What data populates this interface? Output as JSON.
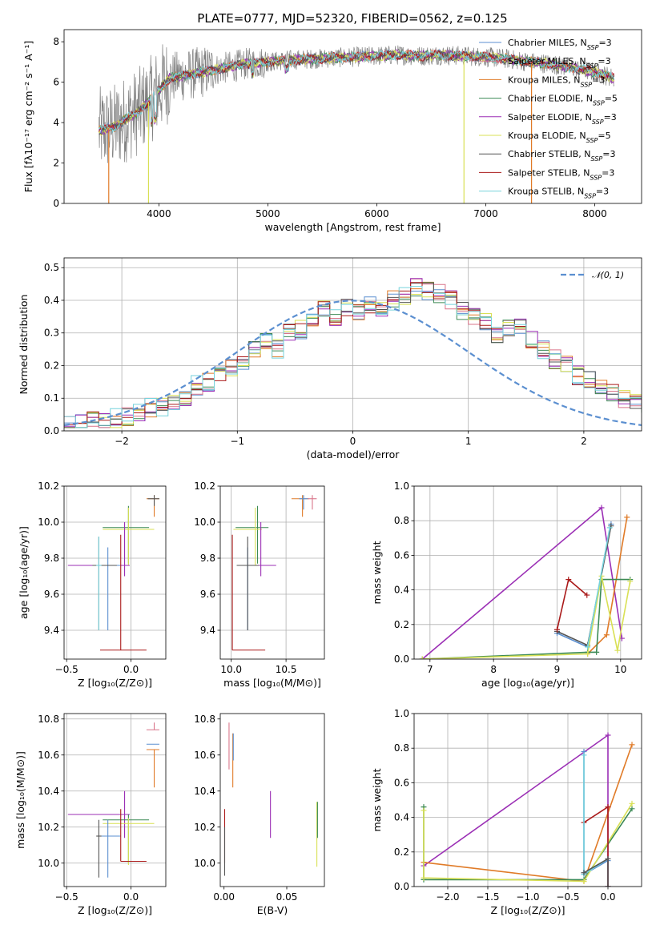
{
  "chart_data": [
    {
      "id": "spectrum",
      "type": "line",
      "title": "PLATE=0777, MJD=52320, FIBERID=0562, z=0.125",
      "xlabel": "wavelength [Angstrom, rest frame]",
      "ylabel": "Flux [fλ10⁻¹⁷ erg cm⁻² s⁻¹ A⁻¹]",
      "xlim": [
        3130,
        8430
      ],
      "ylim": [
        0,
        8.6
      ],
      "xticks": [
        4000,
        5000,
        6000,
        7000,
        8000
      ],
      "yticks": [
        0,
        2,
        4,
        6,
        8
      ],
      "legend_position": "right",
      "data_series": {
        "name": "",
        "color": "#808080"
      },
      "series": [
        {
          "name": "Chabrier MILES, N_SSP=3",
          "color": "#5b8fd0"
        },
        {
          "name": "Salpeter MILES, N_SSP=3",
          "color": "#d9748a"
        },
        {
          "name": "Kroupa MILES, N_SSP=3",
          "color": "#e07b28"
        },
        {
          "name": "Chabrier ELODIE, N_SSP=5",
          "color": "#3c8a55"
        },
        {
          "name": "Salpeter ELODIE, N_SSP=3",
          "color": "#9b2fb5"
        },
        {
          "name": "Kroupa ELODIE, N_SSP=5",
          "color": "#d9e055"
        },
        {
          "name": "Chabrier STELIB, N_SSP=3",
          "color": "#555555"
        },
        {
          "name": "Salpeter STELIB, N_SSP=3",
          "color": "#aa1a1a"
        },
        {
          "name": "Kroupa STELIB, N_SSP=3",
          "color": "#76d2dc"
        }
      ],
      "continuum": {
        "x": [
          3450,
          3600,
          3700,
          3800,
          3900,
          4000,
          4100,
          4200,
          4400,
          4600,
          4800,
          5000,
          5200,
          5400,
          5600,
          5800,
          6000,
          6200,
          6400,
          6600,
          6800,
          7000,
          7200,
          7400,
          7600,
          7800,
          8000,
          8180
        ],
        "y": [
          3.6,
          3.8,
          4.2,
          4.5,
          5.0,
          5.6,
          6.2,
          6.3,
          6.5,
          6.7,
          6.9,
          7.0,
          7.1,
          7.15,
          7.2,
          7.25,
          7.3,
          7.35,
          7.3,
          7.35,
          7.3,
          7.25,
          7.15,
          7.0,
          6.9,
          6.7,
          6.5,
          6.2
        ]
      }
    },
    {
      "id": "residuals",
      "type": "step",
      "xlabel": "(data-model)/error",
      "ylabel": "Normed distribution",
      "xlim": [
        -2.5,
        2.5
      ],
      "ylim": [
        0,
        0.53
      ],
      "xticks": [
        -2,
        -1,
        0,
        1,
        2
      ],
      "yticks": [
        0.0,
        0.1,
        0.2,
        0.3,
        0.4,
        0.5
      ],
      "grid": true,
      "legend": {
        "label": "𝒩(0, 1)",
        "position": "top-right"
      },
      "gaussian": {
        "mu": 0,
        "sigma": 1,
        "color": "#5b8fd0"
      },
      "bin_width": 0.1,
      "bin_start": -2.5,
      "base_hist": [
        0.02,
        0.025,
        0.03,
        0.035,
        0.04,
        0.045,
        0.06,
        0.07,
        0.075,
        0.08,
        0.1,
        0.14,
        0.15,
        0.17,
        0.19,
        0.21,
        0.25,
        0.28,
        0.25,
        0.3,
        0.31,
        0.33,
        0.37,
        0.35,
        0.38,
        0.36,
        0.39,
        0.38,
        0.4,
        0.41,
        0.44,
        0.43,
        0.42,
        0.4,
        0.37,
        0.35,
        0.33,
        0.3,
        0.32,
        0.32,
        0.28,
        0.25,
        0.22,
        0.2,
        0.17,
        0.16,
        0.14,
        0.12,
        0.1,
        0.09,
        0.08,
        0.1,
        0.07,
        0.05,
        0.04,
        0.03,
        0.03,
        0.025,
        0.02,
        0.02
      ]
    },
    {
      "id": "age-vs-Z",
      "type": "errorbar",
      "xlabel": "Z [log₁₀(Z/Z⊙)]",
      "ylabel": "age  [log₁₀(age/yr)]",
      "xlim": [
        -0.52,
        0.27
      ],
      "ylim": [
        9.24,
        10.2
      ],
      "xticks": [
        -0.5,
        0.0
      ],
      "yticks": [
        9.4,
        9.6,
        9.8,
        10.0,
        10.2
      ],
      "grid": true,
      "points": [
        {
          "color": "#e07b28",
          "x": 0.18,
          "y": 10.13,
          "xerr": [
            0.06,
            0.04
          ],
          "yerr": [
            0.1,
            0.02
          ]
        },
        {
          "color": "#555555",
          "x": 0.18,
          "y": 10.13,
          "xerr": [
            0.05,
            0.04
          ],
          "yerr": [
            0.04,
            0.02
          ]
        },
        {
          "color": "#3c8a55",
          "x": -0.02,
          "y": 9.97,
          "xerr": [
            0.2,
            0.16
          ],
          "yerr": [
            0.2,
            0.12
          ]
        },
        {
          "color": "#d9e055",
          "x": -0.02,
          "y": 9.96,
          "xerr": [
            0.2,
            0.2
          ],
          "yerr": [
            0.2,
            0.12
          ]
        },
        {
          "color": "#9b2fb5",
          "x": -0.05,
          "y": 9.76,
          "xerr": [
            0.44,
            0.04
          ],
          "yerr": [
            0.06,
            0.24
          ]
        },
        {
          "color": "#5b8fd0",
          "x": -0.18,
          "y": 9.76,
          "xerr": [
            0.06,
            0.1
          ],
          "yerr": [
            0.36,
            0.1
          ]
        },
        {
          "color": "#555555",
          "x": -0.25,
          "y": 9.76,
          "xerr": [
            0.05,
            0.14
          ],
          "yerr": [
            0.36,
            0.16
          ]
        },
        {
          "color": "#76d2dc",
          "x": -0.25,
          "y": 9.76,
          "xerr": [
            0.02,
            0.02
          ],
          "yerr": [
            0.36,
            0.16
          ]
        },
        {
          "color": "#aa1a1a",
          "x": -0.08,
          "y": 9.29,
          "xerr": [
            0.16,
            0.2
          ],
          "yerr": [
            0.0,
            0.64
          ]
        }
      ]
    },
    {
      "id": "age-vs-mass",
      "type": "errorbar",
      "xlabel": "mass [log₁₀(M/M⊙)]",
      "ylabel": "",
      "xlim": [
        9.9,
        10.85
      ],
      "ylim": [
        9.24,
        10.2
      ],
      "xticks": [
        10.0,
        10.5
      ],
      "yticks": [
        9.4,
        9.6,
        9.8,
        10.0,
        10.2
      ],
      "grid": true,
      "points": [
        {
          "color": "#e07b28",
          "x": 10.65,
          "y": 10.13,
          "xerr": [
            0.1,
            0.06
          ],
          "yerr": [
            0.1,
            0.02
          ]
        },
        {
          "color": "#5b8fd0",
          "x": 10.66,
          "y": 10.13,
          "xerr": [
            0.04,
            0.04
          ],
          "yerr": [
            0.06,
            0.02
          ]
        },
        {
          "color": "#d9748a",
          "x": 10.74,
          "y": 10.13,
          "xerr": [
            0.04,
            0.04
          ],
          "yerr": [
            0.06,
            0.02
          ]
        },
        {
          "color": "#3c8a55",
          "x": 10.24,
          "y": 9.97,
          "xerr": [
            0.2,
            0.1
          ],
          "yerr": [
            0.2,
            0.12
          ]
        },
        {
          "color": "#d9e055",
          "x": 10.22,
          "y": 9.96,
          "xerr": [
            0.2,
            0.06
          ],
          "yerr": [
            0.2,
            0.12
          ]
        },
        {
          "color": "#9b2fb5",
          "x": 10.27,
          "y": 9.76,
          "xerr": [
            0.1,
            0.14
          ],
          "yerr": [
            0.06,
            0.24
          ]
        },
        {
          "color": "#5b8fd0",
          "x": 10.15,
          "y": 9.76,
          "xerr": [
            0.05,
            0.1
          ],
          "yerr": [
            0.36,
            0.1
          ]
        },
        {
          "color": "#555555",
          "x": 10.15,
          "y": 9.76,
          "xerr": [
            0.1,
            0.1
          ],
          "yerr": [
            0.36,
            0.16
          ]
        },
        {
          "color": "#aa1a1a",
          "x": 10.01,
          "y": 9.29,
          "xerr": [
            0.0,
            0.3
          ],
          "yerr": [
            0.0,
            0.64
          ]
        }
      ]
    },
    {
      "id": "weight-vs-age",
      "type": "line",
      "xlabel": "age  [log₁₀(age/yr)]",
      "ylabel": "mass weight",
      "xlim": [
        6.75,
        10.33
      ],
      "ylim": [
        0,
        1.0
      ],
      "xticks": [
        7,
        8,
        9,
        10
      ],
      "yticks": [
        0.0,
        0.2,
        0.4,
        0.6,
        0.8,
        1.0
      ],
      "grid": true,
      "series": [
        {
          "color": "#9b2fb5",
          "x": [
            6.88,
            9.7,
            10.02
          ],
          "y": [
            0.0,
            0.875,
            0.12
          ]
        },
        {
          "color": "#e07b28",
          "x": [
            9.48,
            9.78,
            10.1
          ],
          "y": [
            0.03,
            0.14,
            0.82
          ]
        },
        {
          "color": "#5b8fd0",
          "x": [
            9.0,
            9.48,
            9.85
          ],
          "y": [
            0.15,
            0.07,
            0.78
          ]
        },
        {
          "color": "#555555",
          "x": [
            9.0,
            9.48,
            9.85
          ],
          "y": [
            0.16,
            0.08,
            0.77
          ]
        },
        {
          "color": "#3c8a55",
          "x": [
            6.88,
            9.48,
            9.62,
            9.7,
            10.15
          ],
          "y": [
            0.0,
            0.04,
            0.04,
            0.46,
            0.46
          ]
        },
        {
          "color": "#d9e055",
          "x": [
            6.88,
            9.48,
            9.7,
            9.95,
            10.15
          ],
          "y": [
            0.0,
            0.03,
            0.48,
            0.05,
            0.45
          ]
        },
        {
          "color": "#aa1a1a",
          "x": [
            9.0,
            9.18,
            9.47
          ],
          "y": [
            0.17,
            0.46,
            0.37
          ]
        },
        {
          "color": "#76d2dc",
          "x": [
            9.48,
            9.83
          ],
          "y": [
            0.07,
            0.76
          ]
        }
      ]
    },
    {
      "id": "mass-vs-Z",
      "type": "errorbar",
      "xlabel": "Z [log₁₀(Z/Z⊙)]",
      "ylabel": "mass [log₁₀(M/M⊙)]",
      "xlim": [
        -0.52,
        0.27
      ],
      "ylim": [
        9.87,
        10.83
      ],
      "xticks": [
        -0.5,
        0.0
      ],
      "yticks": [
        10.0,
        10.2,
        10.4,
        10.6,
        10.8
      ],
      "grid": true,
      "points": [
        {
          "color": "#d9748a",
          "x": 0.18,
          "y": 10.74,
          "xerr": [
            0.06,
            0.04
          ],
          "yerr": [
            0.0,
            0.04
          ]
        },
        {
          "color": "#5b8fd0",
          "x": 0.18,
          "y": 10.66,
          "xerr": [
            0.06,
            0.04
          ],
          "yerr": [
            0.0,
            0.0
          ]
        },
        {
          "color": "#e07b28",
          "x": 0.18,
          "y": 10.63,
          "xerr": [
            0.06,
            0.04
          ],
          "yerr": [
            0.21,
            0.0
          ]
        },
        {
          "color": "#9b2fb5",
          "x": -0.05,
          "y": 10.27,
          "xerr": [
            0.44,
            0.04
          ],
          "yerr": [
            0.13,
            0.13
          ]
        },
        {
          "color": "#3c8a55",
          "x": -0.02,
          "y": 10.24,
          "xerr": [
            0.2,
            0.16
          ],
          "yerr": [
            0.24,
            0.03
          ]
        },
        {
          "color": "#d9e055",
          "x": -0.02,
          "y": 10.22,
          "xerr": [
            0.2,
            0.2
          ],
          "yerr": [
            0.23,
            0.03
          ]
        },
        {
          "color": "#5b8fd0",
          "x": -0.18,
          "y": 10.15,
          "xerr": [
            0.06,
            0.1
          ],
          "yerr": [
            0.23,
            0.09
          ]
        },
        {
          "color": "#555555",
          "x": -0.25,
          "y": 10.15,
          "xerr": [
            0.02,
            0.02
          ],
          "yerr": [
            0.23,
            0.09
          ]
        },
        {
          "color": "#aa1a1a",
          "x": -0.08,
          "y": 10.01,
          "xerr": [
            0.0,
            0.2
          ],
          "yerr": [
            0.0,
            0.29
          ]
        }
      ]
    },
    {
      "id": "mass-vs-EBV",
      "type": "errorbar",
      "xlabel": "E(B-V)",
      "ylabel": "",
      "xlim": [
        -0.003,
        0.08
      ],
      "ylim": [
        9.87,
        10.83
      ],
      "xticks": [
        0.0,
        0.05
      ],
      "yticks": [
        10.0,
        10.2,
        10.4,
        10.6,
        10.8
      ],
      "points": [
        {
          "color": "#d9748a",
          "x": 0.004,
          "y": 10.65,
          "xerr": [
            0,
            0
          ],
          "yerr": [
            0.13,
            0.13
          ]
        },
        {
          "color": "#e07b28",
          "x": 0.007,
          "y": 10.57,
          "xerr": [
            0,
            0
          ],
          "yerr": [
            0.15,
            0.15
          ]
        },
        {
          "color": "#5b8fd0",
          "x": 0.0074,
          "y": 10.62,
          "xerr": [
            0,
            0
          ],
          "yerr": [
            0.05,
            0.1
          ]
        },
        {
          "color": "#aa1a1a",
          "x": 0.0005,
          "y": 10.15,
          "xerr": [
            0,
            0
          ],
          "yerr": [
            0.15,
            0.15
          ]
        },
        {
          "color": "#555555",
          "x": 0.0005,
          "y": 10.05,
          "xerr": [
            0,
            0
          ],
          "yerr": [
            0.12,
            0.15
          ]
        },
        {
          "color": "#9b2fb5",
          "x": 0.037,
          "y": 10.27,
          "xerr": [
            0,
            0
          ],
          "yerr": [
            0.13,
            0.13
          ]
        },
        {
          "color": "#d9e055",
          "x": 0.074,
          "y": 10.16,
          "xerr": [
            0,
            0
          ],
          "yerr": [
            0.18,
            0.18
          ]
        },
        {
          "color": "#3c8a55",
          "x": 0.0745,
          "y": 10.24,
          "xerr": [
            0,
            0
          ],
          "yerr": [
            0.1,
            0.1
          ]
        }
      ]
    },
    {
      "id": "weight-vs-Z",
      "type": "line",
      "xlabel": "Z [log₁₀(Z/Z⊙)]",
      "ylabel": "mass weight",
      "xlim": [
        -2.42,
        0.42
      ],
      "ylim": [
        0,
        1.0
      ],
      "xticks": [
        -2.0,
        -1.5,
        -1.0,
        -0.5,
        0.0
      ],
      "yticks": [
        0.0,
        0.2,
        0.4,
        0.6,
        0.8,
        1.0
      ],
      "grid": true,
      "series": [
        {
          "color": "#9b2fb5",
          "x": [
            -2.3,
            0.0,
            0.0
          ],
          "y": [
            0.12,
            0.875,
            0.0
          ]
        },
        {
          "color": "#e07b28",
          "x": [
            -2.3,
            -0.3,
            0.3
          ],
          "y": [
            0.14,
            0.03,
            0.82
          ]
        },
        {
          "color": "#5b8fd0",
          "x": [
            -0.3,
            -0.3,
            0.0,
            0.0
          ],
          "y": [
            0.78,
            0.07,
            0.15,
            0.0
          ]
        },
        {
          "color": "#3c8a55",
          "x": [
            -2.3,
            -2.3,
            -0.3,
            0.3
          ],
          "y": [
            0.46,
            0.04,
            0.04,
            0.45
          ]
        },
        {
          "color": "#d9e055",
          "x": [
            -2.3,
            -2.3,
            -0.3,
            0.3
          ],
          "y": [
            0.44,
            0.05,
            0.03,
            0.48
          ]
        },
        {
          "color": "#aa1a1a",
          "x": [
            -0.3,
            0.0,
            0.0
          ],
          "y": [
            0.37,
            0.46,
            0.0
          ]
        },
        {
          "color": "#76d2dc",
          "x": [
            -0.3,
            -0.3,
            0.0
          ],
          "y": [
            0.76,
            0.07,
            0.16
          ]
        },
        {
          "color": "#555555",
          "x": [
            -0.3,
            0.0,
            0.0
          ],
          "y": [
            0.08,
            0.16,
            0.0
          ]
        }
      ]
    }
  ]
}
